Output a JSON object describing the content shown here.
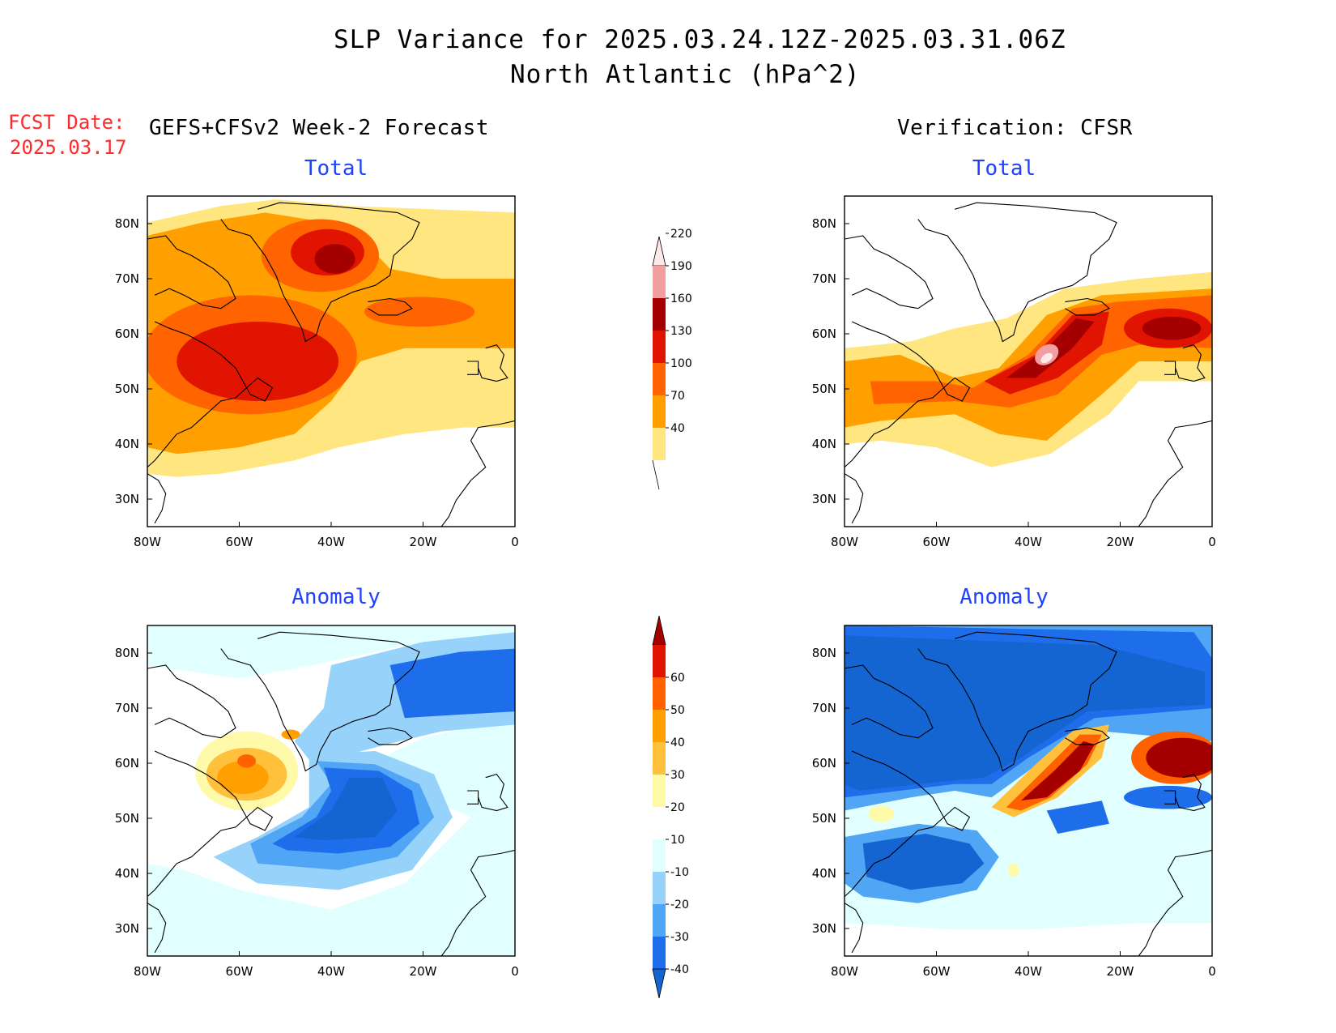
{
  "title": {
    "line1": "SLP Variance for 2025.03.24.12Z-2025.03.31.06Z",
    "line2": "North Atlantic (hPa^2)"
  },
  "fcst_date": {
    "label": "FCST Date:",
    "value": "2025.03.17"
  },
  "headers": {
    "left": "GEFS+CFSv2 Week-2 Forecast",
    "right": "Verification: CFSR"
  },
  "panels": [
    {
      "id": "fcst-total",
      "subtitle": "Total",
      "field": "total"
    },
    {
      "id": "cfsr-total",
      "subtitle": "Total",
      "field": "total"
    },
    {
      "id": "fcst-anomaly",
      "subtitle": "Anomaly",
      "field": "anomaly"
    },
    {
      "id": "cfsr-anomaly",
      "subtitle": "Anomaly",
      "field": "anomaly"
    }
  ],
  "axes": {
    "lon_labels": [
      "80W",
      "60W",
      "40W",
      "20W",
      "0"
    ],
    "lat_labels": [
      "80N",
      "70N",
      "60N",
      "50N",
      "40N",
      "30N"
    ],
    "lon_range": [
      -80,
      0
    ],
    "lat_range": [
      25,
      85
    ]
  },
  "colorbars": {
    "total": {
      "labels": [
        "40",
        "70",
        "100",
        "130",
        "160",
        "190",
        "220"
      ],
      "colors": [
        "#ffe680",
        "#ffa000",
        "#ff6400",
        "#e01400",
        "#a50000",
        "#f0a0a0",
        "#ffe8e8"
      ],
      "extend": "max"
    },
    "anomaly": {
      "labels": [
        "-40",
        "-30",
        "-20",
        "-10",
        "10",
        "20",
        "30",
        "40",
        "50",
        "60"
      ],
      "colors": [
        "#1464d2",
        "#1e6eeb",
        "#50a5f5",
        "#96d2fa",
        "#e1ffff",
        "#ffffff",
        "#fffaaa",
        "#ffc03c",
        "#ffa000",
        "#ff6000",
        "#e11400",
        "#a50000"
      ],
      "extend": "both"
    }
  },
  "colors": {
    "title_text": "#000000",
    "fcst_date": "#ff2a2a",
    "subtitle": "#1e40ff",
    "coastline": "#000000"
  }
}
